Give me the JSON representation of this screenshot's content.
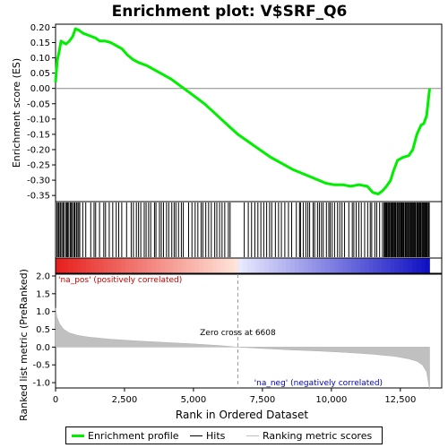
{
  "chart_data": {
    "type": "line",
    "title": "Enrichment plot: V$SRF_Q6",
    "xlabel": "Rank in Ordered Dataset",
    "xlim": [
      0,
      14000
    ],
    "x_ticks": [
      0,
      2500,
      5000,
      7500,
      10000,
      12500
    ],
    "x_tick_labels": [
      "0",
      "2,500",
      "5,000",
      "7,500",
      "10,000",
      "12,500"
    ],
    "enrichment_panel": {
      "ylabel": "Enrichment score (ES)",
      "ylim": [
        -0.37,
        0.21
      ],
      "y_ticks": [
        0.2,
        0.15,
        0.1,
        0.05,
        0.0,
        -0.05,
        -0.1,
        -0.15,
        -0.2,
        -0.25,
        -0.3,
        -0.35
      ],
      "y_tick_labels": [
        "0.20",
        "0.15",
        "0.10",
        "0.05",
        "0.00",
        "-0.05",
        "-0.10",
        "-0.15",
        "-0.20",
        "-0.25",
        "-0.30",
        "-0.35"
      ],
      "series": [
        {
          "name": "Enrichment profile",
          "color": "#00ee00",
          "x": [
            0,
            60,
            130,
            200,
            280,
            380,
            500,
            620,
            720,
            850,
            1000,
            1150,
            1300,
            1450,
            1600,
            1800,
            2000,
            2200,
            2400,
            2600,
            2800,
            3000,
            3300,
            3600,
            3900,
            4200,
            4500,
            4800,
            5100,
            5400,
            5700,
            6000,
            6300,
            6608,
            7000,
            7400,
            7800,
            8200,
            8600,
            9000,
            9400,
            9800,
            10100,
            10400,
            10700,
            11000,
            11300,
            11500,
            11700,
            11850,
            12000,
            12150,
            12250,
            12400,
            12600,
            12800,
            12950,
            13100,
            13250,
            13350,
            13450,
            13500,
            13560
          ],
          "y": [
            0.02,
            0.09,
            0.12,
            0.155,
            0.15,
            0.145,
            0.155,
            0.17,
            0.195,
            0.19,
            0.18,
            0.175,
            0.17,
            0.165,
            0.155,
            0.155,
            0.15,
            0.14,
            0.13,
            0.11,
            0.095,
            0.085,
            0.075,
            0.06,
            0.045,
            0.03,
            0.01,
            -0.01,
            -0.03,
            -0.05,
            -0.075,
            -0.1,
            -0.125,
            -0.15,
            -0.175,
            -0.2,
            -0.225,
            -0.245,
            -0.265,
            -0.28,
            -0.295,
            -0.31,
            -0.315,
            -0.315,
            -0.32,
            -0.315,
            -0.32,
            -0.34,
            -0.345,
            -0.335,
            -0.32,
            -0.3,
            -0.27,
            -0.235,
            -0.225,
            -0.22,
            -0.2,
            -0.15,
            -0.12,
            -0.115,
            -0.09,
            -0.05,
            0.0
          ]
        }
      ]
    },
    "hits": [
      {
        "start": 30,
        "end": 900,
        "count": 20
      },
      {
        "start": 950,
        "end": 2600,
        "count": 14
      },
      {
        "start": 2700,
        "end": 4700,
        "count": 22
      },
      {
        "start": 4800,
        "end": 6400,
        "count": 16
      },
      {
        "start": 6800,
        "end": 8600,
        "count": 16
      },
      {
        "start": 8700,
        "end": 10500,
        "count": 22
      },
      {
        "start": 10600,
        "end": 11900,
        "count": 14
      },
      {
        "start": 11900,
        "end": 13560,
        "count": 55
      }
    ],
    "ranked_panel": {
      "ylabel": "Ranked list metric (PreRanked)",
      "ylim": [
        -1.15,
        2.05
      ],
      "y_ticks": [
        2.0,
        1.5,
        1.0,
        0.5,
        0.0,
        -0.5,
        -1.0
      ],
      "y_tick_labels": [
        "2.0",
        "1.5",
        "1.0",
        "0.5",
        "0.0",
        "-0.5",
        "-1.0"
      ],
      "metric_x": [
        0,
        50,
        150,
        300,
        500,
        800,
        1200,
        2000,
        3000,
        4000,
        5000,
        6000,
        6608,
        7500,
        8500,
        9500,
        10500,
        11500,
        12300,
        12800,
        13100,
        13300,
        13450,
        13560
      ],
      "metric_y": [
        1.1,
        0.85,
        0.65,
        0.5,
        0.4,
        0.33,
        0.28,
        0.22,
        0.17,
        0.13,
        0.09,
        0.04,
        0.0,
        -0.04,
        -0.08,
        -0.11,
        -0.15,
        -0.2,
        -0.26,
        -0.33,
        -0.4,
        -0.5,
        -0.7,
        -1.2
      ],
      "zero_cross_x": 6608,
      "zero_cross_label": "Zero cross at 6608",
      "pos_label": "'na_pos' (positively correlated)",
      "neg_label": "'na_neg' (negatively correlated)",
      "pos_color": "#cc0000",
      "neg_color": "#0000cc"
    },
    "legend": {
      "placement": "bottom",
      "items": [
        {
          "label": "Enrichment profile",
          "color": "#00ee00"
        },
        {
          "label": "Hits",
          "color": "#000000"
        },
        {
          "label": "Ranking metric scores",
          "color": "#c0c0c0"
        }
      ]
    }
  }
}
